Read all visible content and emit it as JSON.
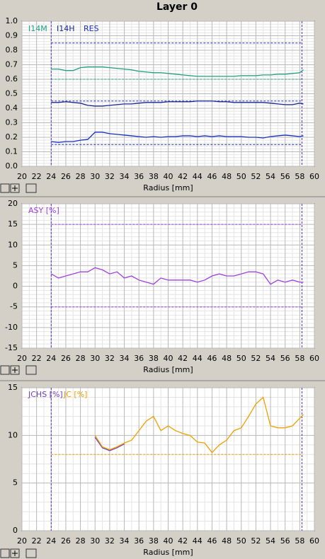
{
  "title": "Layer 0",
  "chart_data": [
    {
      "type": "line",
      "legend": [
        "I14M",
        "I14H",
        "RES"
      ],
      "x_label": "Radius [mm]",
      "x": [
        24,
        25,
        26,
        27,
        28,
        29,
        30,
        31,
        32,
        33,
        34,
        35,
        36,
        37,
        38,
        39,
        40,
        41,
        42,
        43,
        44,
        45,
        46,
        47,
        48,
        49,
        50,
        51,
        52,
        53,
        54,
        55,
        56,
        57,
        58,
        58.5
      ],
      "series": [
        {
          "name": "I14M",
          "color": "#20a080",
          "values": [
            0.67,
            0.67,
            0.66,
            0.66,
            0.68,
            0.685,
            0.685,
            0.685,
            0.68,
            0.675,
            0.67,
            0.665,
            0.655,
            0.65,
            0.645,
            0.645,
            0.64,
            0.635,
            0.63,
            0.625,
            0.62,
            0.62,
            0.62,
            0.62,
            0.62,
            0.62,
            0.625,
            0.625,
            0.625,
            0.63,
            0.63,
            0.635,
            0.635,
            0.64,
            0.645,
            0.665
          ]
        },
        {
          "name": "I14H",
          "color": "#1c2890",
          "values": [
            0.44,
            0.44,
            0.445,
            0.44,
            0.435,
            0.42,
            0.415,
            0.415,
            0.42,
            0.425,
            0.43,
            0.43,
            0.435,
            0.44,
            0.44,
            0.44,
            0.445,
            0.445,
            0.445,
            0.445,
            0.45,
            0.45,
            0.45,
            0.445,
            0.445,
            0.44,
            0.44,
            0.44,
            0.44,
            0.44,
            0.435,
            0.43,
            0.425,
            0.425,
            0.435,
            0.43
          ]
        },
        {
          "name": "RES",
          "color": "#1830c0",
          "values": [
            0.17,
            0.165,
            0.17,
            0.17,
            0.18,
            0.185,
            0.235,
            0.235,
            0.225,
            0.22,
            0.215,
            0.21,
            0.205,
            0.2,
            0.205,
            0.2,
            0.205,
            0.205,
            0.21,
            0.21,
            0.205,
            0.21,
            0.205,
            0.21,
            0.205,
            0.205,
            0.205,
            0.2,
            0.2,
            0.195,
            0.205,
            0.21,
            0.215,
            0.21,
            0.205,
            0.21
          ]
        }
      ],
      "xlim": [
        20,
        60
      ],
      "xticks": [
        20,
        22,
        24,
        26,
        28,
        30,
        32,
        34,
        36,
        38,
        40,
        42,
        44,
        46,
        48,
        50,
        52,
        54,
        56,
        58,
        60
      ],
      "ylim": [
        0,
        1
      ],
      "yticks": [
        {
          "value": 0,
          "label": "0.0"
        },
        0.1,
        0.2,
        0.3,
        0.4,
        0.5,
        0.6,
        0.7,
        0.8,
        0.9,
        {
          "value": 1,
          "label": "1.0"
        }
      ],
      "hlines": [
        0.85,
        0.6,
        0.45,
        0.15
      ],
      "hline_colors": [
        "#2030b0",
        "#20a080",
        "#2030b0",
        "#2030b0"
      ],
      "vlines": [
        24,
        58.3
      ],
      "grid": true
    },
    {
      "type": "line",
      "legend": [
        "ASY [%]"
      ],
      "x_label": "Radius [mm]",
      "x": [
        24,
        25,
        26,
        27,
        28,
        29,
        30,
        31,
        32,
        33,
        34,
        35,
        36,
        37,
        38,
        39,
        40,
        41,
        42,
        43,
        44,
        45,
        46,
        47,
        48,
        49,
        50,
        51,
        52,
        53,
        54,
        55,
        56,
        57,
        58,
        58.5
      ],
      "series": [
        {
          "name": "ASY [%]",
          "color": "#a040e0",
          "values": [
            3,
            2,
            2.5,
            3,
            3.5,
            3.5,
            4.5,
            4,
            3,
            3.5,
            2,
            2.5,
            1.5,
            1,
            0.5,
            2,
            1.5,
            1.5,
            1.5,
            1.5,
            1,
            1.5,
            2.5,
            3,
            2.5,
            2.5,
            3,
            3.5,
            3.5,
            3,
            0.5,
            1.5,
            1,
            1.5,
            1,
            1
          ]
        }
      ],
      "xlim": [
        20,
        60
      ],
      "xticks": [
        20,
        22,
        24,
        26,
        28,
        30,
        32,
        34,
        36,
        38,
        40,
        42,
        44,
        46,
        48,
        50,
        52,
        54,
        56,
        58,
        60
      ],
      "ylim": [
        -15,
        20
      ],
      "yticks": [
        -15,
        -10,
        -5,
        0,
        5,
        10,
        15,
        20
      ],
      "hlines": [
        15,
        -5
      ],
      "hline_colors": [
        "#a040e0",
        "#a040e0"
      ],
      "vlines": [
        24,
        58.3
      ],
      "grid": true
    },
    {
      "type": "line",
      "legend": [
        "JC [%]",
        "JCHS [%]"
      ],
      "x_label": "Radius [mm]",
      "x": [
        24,
        25,
        26,
        27,
        28,
        29,
        30,
        31,
        32,
        33,
        34,
        35,
        36,
        37,
        38,
        39,
        40,
        41,
        42,
        43,
        44,
        45,
        46,
        47,
        48,
        49,
        50,
        51,
        52,
        53,
        54,
        55,
        56,
        57,
        58,
        58.5
      ],
      "series": [
        {
          "name": "JCHS [%]",
          "color": "#7040c0",
          "values": [
            null,
            null,
            null,
            null,
            null,
            null,
            9.8,
            8.7,
            8.4,
            8.7,
            9.1,
            null,
            null,
            null,
            null,
            null,
            null,
            null,
            null,
            null,
            null,
            null,
            null,
            null,
            null,
            null,
            null,
            null,
            null,
            null,
            null,
            null,
            null,
            null,
            null,
            null
          ]
        },
        {
          "name": "JC [%]",
          "color": "#f0a000",
          "values": [
            null,
            null,
            null,
            null,
            null,
            null,
            10,
            8.8,
            8.5,
            8.8,
            9.2,
            9.5,
            10.5,
            11.5,
            12,
            10.5,
            11,
            10.5,
            10.2,
            10,
            9.3,
            9.2,
            8.2,
            9,
            9.5,
            10.5,
            10.8,
            12,
            13.3,
            14,
            11,
            10.8,
            10.8,
            11,
            11.8,
            12.2
          ]
        }
      ],
      "xlim": [
        20,
        60
      ],
      "xticks": [
        20,
        22,
        24,
        26,
        28,
        30,
        32,
        34,
        36,
        38,
        40,
        42,
        44,
        46,
        48,
        50,
        52,
        54,
        56,
        58,
        60
      ],
      "ylim": [
        0,
        15
      ],
      "yticks": [
        0,
        5,
        10,
        15
      ],
      "hlines": [
        8
      ],
      "hline_colors": [
        "#f0a000"
      ],
      "vlines": [
        24,
        58.3
      ],
      "grid": true
    }
  ]
}
